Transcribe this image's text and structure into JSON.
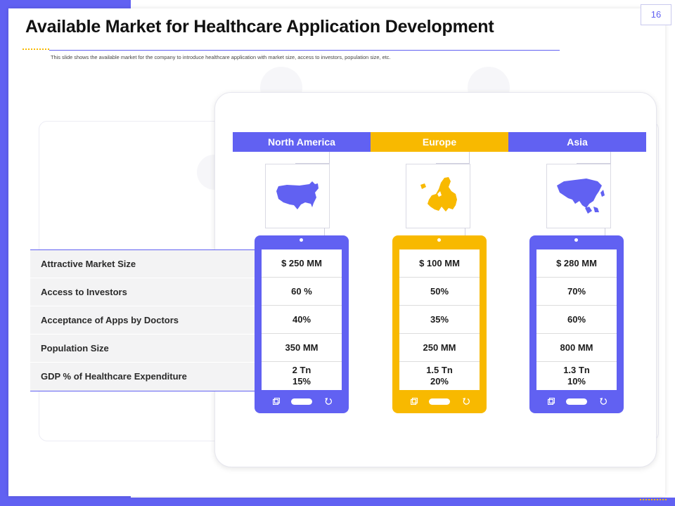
{
  "page_number": "16",
  "title": "Available Market for Healthcare Application Development",
  "subtitle": "This slide shows the available market  for the company to introduce healthcare application with market size, access to investors, population size, etc.",
  "colors": {
    "primary": "#6161f2",
    "accent": "#f8b900",
    "row_bg": "#f3f3f4"
  },
  "row_labels": [
    "Attractive Market Size",
    "Access to Investors",
    "Acceptance of Apps  by Doctors",
    "Population  Size",
    "GDP % of Healthcare Expenditure"
  ],
  "regions": [
    {
      "name": "North America",
      "map_icon": "north-america-map-icon",
      "color": "#6161f2",
      "values": [
        "$ 250 MM",
        "60 %",
        "40%",
        "350 MM",
        [
          "2 Tn",
          "15%"
        ]
      ]
    },
    {
      "name": "Europe",
      "map_icon": "europe-map-icon",
      "color": "#f8b900",
      "values": [
        "$ 100 MM",
        "50%",
        "35%",
        "250 MM",
        [
          "1.5 Tn",
          "20%"
        ]
      ]
    },
    {
      "name": "Asia",
      "map_icon": "asia-map-icon",
      "color": "#6161f2",
      "values": [
        "$ 280 MM",
        "70%",
        "60%",
        "800 MM",
        [
          "1.3 Tn",
          "10%"
        ]
      ]
    }
  ],
  "phone_icons": [
    "copy-icon",
    "home-pill",
    "back-arrow-icon"
  ]
}
